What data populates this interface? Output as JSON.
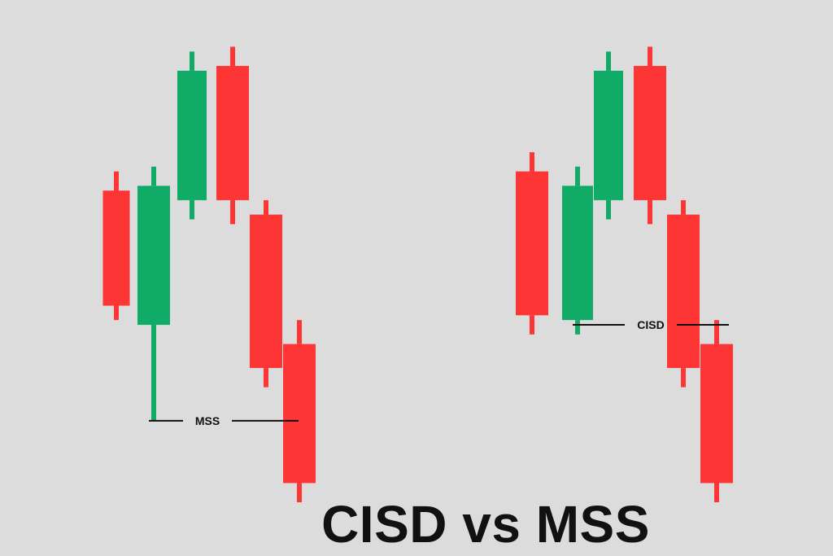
{
  "title": "CISD vs MSS",
  "colors": {
    "background": "#dcdcdc",
    "bullish": "#10ab66",
    "bearish": "#fd3534",
    "level_line": "#111111",
    "text": "#111111"
  },
  "chart_data": [
    {
      "type": "candlestick",
      "title": "",
      "xlabel": "",
      "ylabel": "",
      "grid": false,
      "ylim": [
        0,
        100
      ],
      "candles": [
        {
          "direction": "bearish",
          "open": 74,
          "close": 50,
          "high": 78,
          "low": 47
        },
        {
          "direction": "bullish",
          "open": 46,
          "close": 75,
          "high": 79,
          "low": 26
        },
        {
          "direction": "bullish",
          "open": 72,
          "close": 99,
          "high": 103,
          "low": 68
        },
        {
          "direction": "bearish",
          "open": 100,
          "close": 72,
          "high": 104,
          "low": 67
        },
        {
          "direction": "bearish",
          "open": 69,
          "close": 37,
          "high": 72,
          "low": 33
        },
        {
          "direction": "bearish",
          "open": 42,
          "close": 13,
          "high": 47,
          "low": 9
        }
      ],
      "level": {
        "label": "MSS",
        "value": 26,
        "from_candle": 1,
        "to_candle": 5
      }
    },
    {
      "type": "candlestick",
      "title": "",
      "xlabel": "",
      "ylabel": "",
      "grid": false,
      "ylim": [
        0,
        100
      ],
      "candles": [
        {
          "direction": "bearish",
          "open": 78,
          "close": 48,
          "high": 82,
          "low": 44
        },
        {
          "direction": "bullish",
          "open": 47,
          "close": 75,
          "high": 79,
          "low": 44
        },
        {
          "direction": "bullish",
          "open": 72,
          "close": 99,
          "high": 103,
          "low": 68
        },
        {
          "direction": "bearish",
          "open": 100,
          "close": 72,
          "high": 104,
          "low": 67
        },
        {
          "direction": "bearish",
          "open": 69,
          "close": 37,
          "high": 72,
          "low": 33
        },
        {
          "direction": "bearish",
          "open": 42,
          "close": 13,
          "high": 47,
          "low": 9
        }
      ],
      "level": {
        "label": "CISD",
        "value": 46,
        "from_candle": 1,
        "to_candle": 5
      }
    }
  ]
}
